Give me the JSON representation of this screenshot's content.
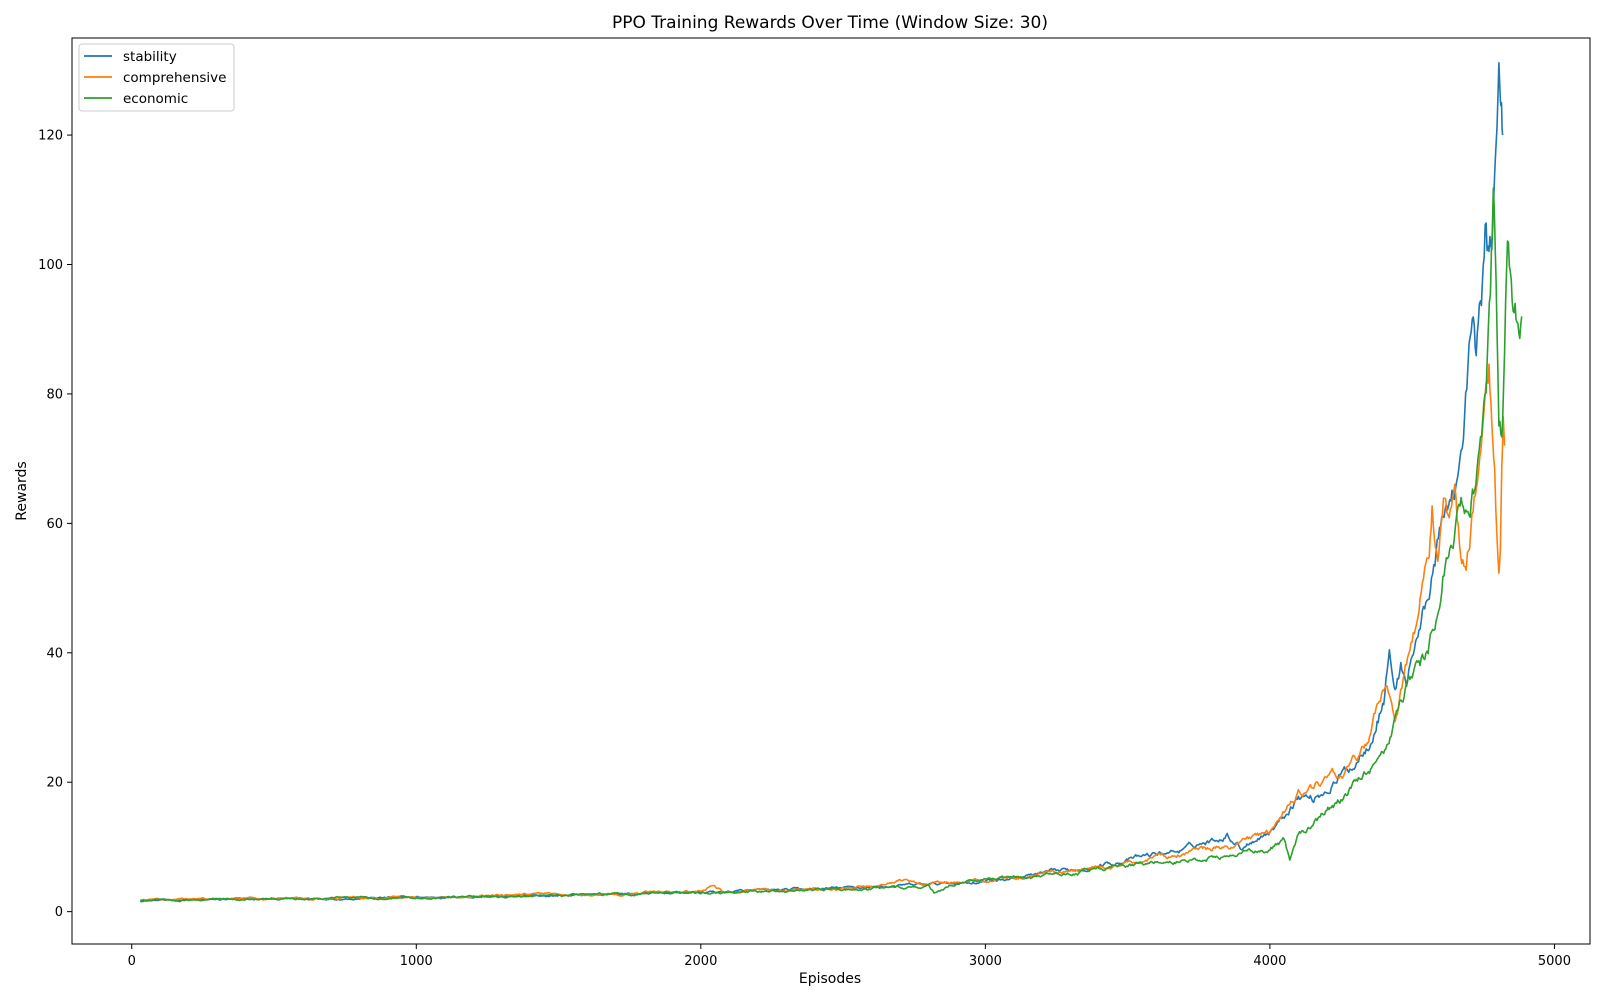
{
  "chart_data": {
    "type": "line",
    "title": "PPO Training Rewards Over Time (Window Size: 30)",
    "xlabel": "Episodes",
    "ylabel": "Rewards",
    "xlim": [
      -210,
      5125
    ],
    "ylim": [
      -5,
      135
    ],
    "xticks": [
      0,
      1000,
      2000,
      3000,
      4000,
      5000
    ],
    "yticks": [
      0,
      20,
      40,
      60,
      80,
      100,
      120
    ],
    "grid": false,
    "legend_position": "top-left",
    "series": [
      {
        "name": "stability",
        "color": "#1f77b4",
        "points": [
          [
            30,
            1.7
          ],
          [
            200,
            1.8
          ],
          [
            400,
            1.9
          ],
          [
            600,
            2.0
          ],
          [
            800,
            2.1
          ],
          [
            1000,
            2.2
          ],
          [
            1200,
            2.3
          ],
          [
            1400,
            2.4
          ],
          [
            1600,
            2.6
          ],
          [
            1800,
            2.8
          ],
          [
            2000,
            3.0
          ],
          [
            2200,
            3.2
          ],
          [
            2400,
            3.5
          ],
          [
            2600,
            3.8
          ],
          [
            2800,
            4.2
          ],
          [
            3000,
            4.7
          ],
          [
            3100,
            5.2
          ],
          [
            3200,
            5.8
          ],
          [
            3300,
            6.4
          ],
          [
            3400,
            7.2
          ],
          [
            3500,
            8.0
          ],
          [
            3600,
            8.9
          ],
          [
            3700,
            9.6
          ],
          [
            3750,
            10.5
          ],
          [
            3800,
            11.0
          ],
          [
            3850,
            12.0
          ],
          [
            3900,
            10.0
          ],
          [
            3950,
            11.5
          ],
          [
            4000,
            12.5
          ],
          [
            4050,
            15.0
          ],
          [
            4100,
            18.0
          ],
          [
            4150,
            17.5
          ],
          [
            4200,
            19.0
          ],
          [
            4250,
            21.0
          ],
          [
            4300,
            23.0
          ],
          [
            4350,
            27.0
          ],
          [
            4400,
            33.0
          ],
          [
            4420,
            41.0
          ],
          [
            4440,
            34.0
          ],
          [
            4460,
            38.0
          ],
          [
            4480,
            36.0
          ],
          [
            4500,
            40.0
          ],
          [
            4520,
            43.0
          ],
          [
            4540,
            46.0
          ],
          [
            4560,
            50.0
          ],
          [
            4580,
            55.0
          ],
          [
            4600,
            58.0
          ],
          [
            4620,
            62.0
          ],
          [
            4640,
            65.0
          ],
          [
            4660,
            68.0
          ],
          [
            4680,
            72.0
          ],
          [
            4700,
            85.0
          ],
          [
            4715,
            90.0
          ],
          [
            4725,
            84.0
          ],
          [
            4740,
            93.0
          ],
          [
            4750,
            98.0
          ],
          [
            4760,
            106.0
          ],
          [
            4770,
            100.0
          ],
          [
            4780,
            104.0
          ],
          [
            4790,
            112.0
          ],
          [
            4798,
            124.0
          ],
          [
            4805,
            129.5
          ],
          [
            4810,
            122.0
          ],
          [
            4814,
            125.0
          ],
          [
            4818,
            120.0
          ]
        ]
      },
      {
        "name": "comprehensive",
        "color": "#ff7f0e",
        "points": [
          [
            30,
            1.8
          ],
          [
            200,
            1.9
          ],
          [
            400,
            2.0
          ],
          [
            600,
            2.1
          ],
          [
            800,
            2.1
          ],
          [
            1000,
            2.2
          ],
          [
            1200,
            2.4
          ],
          [
            1400,
            2.5
          ],
          [
            1600,
            2.7
          ],
          [
            1800,
            2.9
          ],
          [
            2000,
            3.2
          ],
          [
            2040,
            4.1
          ],
          [
            2080,
            3.0
          ],
          [
            2200,
            3.3
          ],
          [
            2400,
            3.5
          ],
          [
            2600,
            3.7
          ],
          [
            2700,
            4.8
          ],
          [
            2800,
            4.2
          ],
          [
            3000,
            4.8
          ],
          [
            3100,
            5.3
          ],
          [
            3200,
            5.7
          ],
          [
            3300,
            6.2
          ],
          [
            3400,
            7.0
          ],
          [
            3500,
            7.6
          ],
          [
            3600,
            8.4
          ],
          [
            3700,
            9.0
          ],
          [
            3800,
            9.7
          ],
          [
            3900,
            10.3
          ],
          [
            4000,
            12.5
          ],
          [
            4050,
            15.0
          ],
          [
            4100,
            18.0
          ],
          [
            4150,
            19.0
          ],
          [
            4200,
            20.0
          ],
          [
            4250,
            21.0
          ],
          [
            4300,
            23.0
          ],
          [
            4350,
            27.0
          ],
          [
            4400,
            34.0
          ],
          [
            4440,
            31.0
          ],
          [
            4480,
            38.0
          ],
          [
            4520,
            45.0
          ],
          [
            4560,
            54.0
          ],
          [
            4570,
            62.0
          ],
          [
            4590,
            56.0
          ],
          [
            4610,
            65.0
          ],
          [
            4630,
            58.0
          ],
          [
            4650,
            62.0
          ],
          [
            4670,
            55.0
          ],
          [
            4690,
            52.0
          ],
          [
            4710,
            60.0
          ],
          [
            4730,
            68.0
          ],
          [
            4750,
            75.0
          ],
          [
            4760,
            80.0
          ],
          [
            4770,
            84.5
          ],
          [
            4780,
            78.0
          ],
          [
            4790,
            70.0
          ],
          [
            4798,
            58.0
          ],
          [
            4805,
            53.0
          ],
          [
            4810,
            56.0
          ],
          [
            4815,
            68.0
          ],
          [
            4820,
            76.0
          ],
          [
            4825,
            72.0
          ]
        ]
      },
      {
        "name": "economic",
        "color": "#2ca02c",
        "points": [
          [
            30,
            1.7
          ],
          [
            200,
            1.8
          ],
          [
            400,
            1.9
          ],
          [
            600,
            2.0
          ],
          [
            800,
            2.1
          ],
          [
            1000,
            2.2
          ],
          [
            1200,
            2.3
          ],
          [
            1400,
            2.4
          ],
          [
            1600,
            2.6
          ],
          [
            1800,
            2.8
          ],
          [
            2000,
            3.0
          ],
          [
            2200,
            3.1
          ],
          [
            2400,
            3.3
          ],
          [
            2600,
            3.5
          ],
          [
            2800,
            3.9
          ],
          [
            2820,
            2.8
          ],
          [
            2900,
            4.5
          ],
          [
            3000,
            4.8
          ],
          [
            3100,
            5.1
          ],
          [
            3200,
            5.5
          ],
          [
            3300,
            6.0
          ],
          [
            3400,
            6.5
          ],
          [
            3500,
            7.0
          ],
          [
            3600,
            7.5
          ],
          [
            3700,
            8.0
          ],
          [
            3800,
            8.5
          ],
          [
            3900,
            9.0
          ],
          [
            4000,
            9.5
          ],
          [
            4050,
            11.0
          ],
          [
            4070,
            8.0
          ],
          [
            4100,
            12.0
          ],
          [
            4150,
            13.5
          ],
          [
            4200,
            15.5
          ],
          [
            4250,
            17.0
          ],
          [
            4300,
            19.5
          ],
          [
            4350,
            22.0
          ],
          [
            4400,
            25.0
          ],
          [
            4430,
            29.0
          ],
          [
            4460,
            33.0
          ],
          [
            4500,
            36.0
          ],
          [
            4540,
            39.0
          ],
          [
            4580,
            44.0
          ],
          [
            4600,
            48.0
          ],
          [
            4620,
            55.0
          ],
          [
            4640,
            58.0
          ],
          [
            4660,
            60.0
          ],
          [
            4680,
            63.0
          ],
          [
            4700,
            65.0
          ],
          [
            4720,
            68.0
          ],
          [
            4740,
            72.0
          ],
          [
            4760,
            80.0
          ],
          [
            4775,
            95.0
          ],
          [
            4785,
            109.0
          ],
          [
            4795,
            95.0
          ],
          [
            4805,
            75.0
          ],
          [
            4815,
            72.0
          ],
          [
            4825,
            85.0
          ],
          [
            4835,
            105.0
          ],
          [
            4845,
            98.0
          ],
          [
            4855,
            95.0
          ],
          [
            4865,
            92.0
          ],
          [
            4875,
            90.0
          ],
          [
            4885,
            92.0
          ]
        ]
      }
    ]
  }
}
